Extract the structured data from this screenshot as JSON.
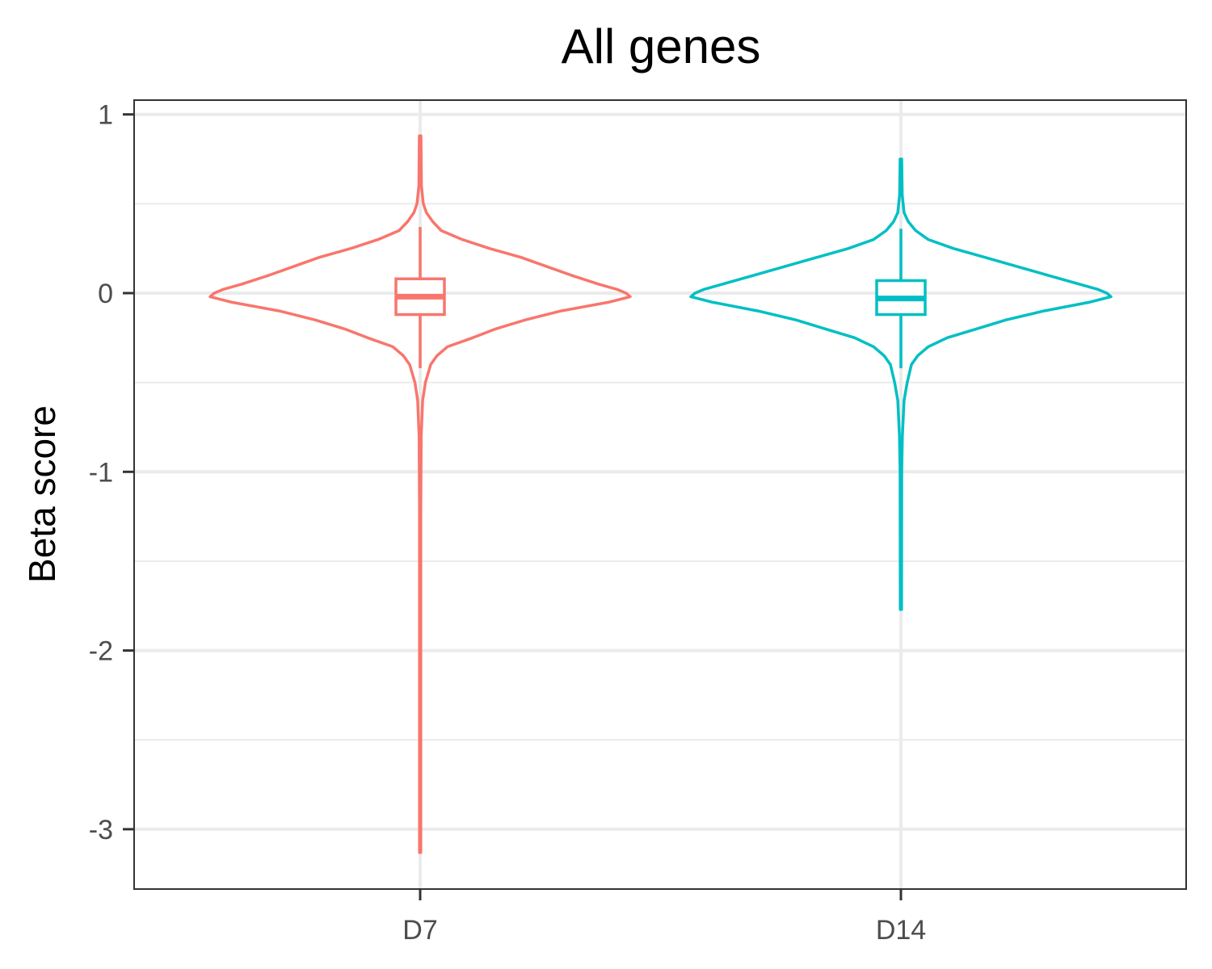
{
  "chart_data": {
    "type": "violin",
    "title": "All genes",
    "xlabel": "",
    "ylabel": "Beta score",
    "ylim": [
      -3.35,
      1.08
    ],
    "yticks": [
      1,
      0,
      -1,
      -2,
      -3
    ],
    "ytick_labels": [
      "1",
      "0",
      "-1",
      "-2",
      "-3"
    ],
    "categories": [
      "D7",
      "D14"
    ],
    "grid": true,
    "legend": "none",
    "series": [
      {
        "category": "D7",
        "color": "#F8766D",
        "min": -3.13,
        "max": 0.88,
        "box": {
          "q1": -0.12,
          "median": -0.02,
          "q3": 0.08,
          "whisker_low": -0.42,
          "whisker_high": 0.37
        },
        "density": [
          [
            0.88,
            0.004
          ],
          [
            0.6,
            0.006
          ],
          [
            0.5,
            0.015
          ],
          [
            0.45,
            0.03
          ],
          [
            0.4,
            0.06
          ],
          [
            0.35,
            0.1
          ],
          [
            0.3,
            0.2
          ],
          [
            0.25,
            0.33
          ],
          [
            0.2,
            0.48
          ],
          [
            0.15,
            0.6
          ],
          [
            0.1,
            0.72
          ],
          [
            0.05,
            0.85
          ],
          [
            0.02,
            0.94
          ],
          [
            0.0,
            0.98
          ],
          [
            -0.02,
            1.0
          ],
          [
            -0.05,
            0.9
          ],
          [
            -0.1,
            0.67
          ],
          [
            -0.15,
            0.5
          ],
          [
            -0.2,
            0.36
          ],
          [
            -0.25,
            0.25
          ],
          [
            -0.3,
            0.13
          ],
          [
            -0.35,
            0.08
          ],
          [
            -0.4,
            0.05
          ],
          [
            -0.5,
            0.025
          ],
          [
            -0.6,
            0.012
          ],
          [
            -0.8,
            0.005
          ],
          [
            -1.2,
            0.003
          ],
          [
            -3.13,
            0.003
          ]
        ]
      },
      {
        "category": "D14",
        "color": "#00BFC4",
        "min": -1.77,
        "max": 0.75,
        "box": {
          "q1": -0.12,
          "median": -0.03,
          "q3": 0.07,
          "whisker_low": -0.42,
          "whisker_high": 0.36
        },
        "density": [
          [
            0.75,
            0.004
          ],
          [
            0.55,
            0.006
          ],
          [
            0.45,
            0.015
          ],
          [
            0.4,
            0.035
          ],
          [
            0.35,
            0.07
          ],
          [
            0.3,
            0.13
          ],
          [
            0.25,
            0.25
          ],
          [
            0.2,
            0.4
          ],
          [
            0.15,
            0.55
          ],
          [
            0.1,
            0.7
          ],
          [
            0.05,
            0.85
          ],
          [
            0.02,
            0.94
          ],
          [
            0.0,
            0.98
          ],
          [
            -0.02,
            1.0
          ],
          [
            -0.05,
            0.9
          ],
          [
            -0.1,
            0.68
          ],
          [
            -0.15,
            0.5
          ],
          [
            -0.2,
            0.36
          ],
          [
            -0.25,
            0.22
          ],
          [
            -0.3,
            0.13
          ],
          [
            -0.35,
            0.08
          ],
          [
            -0.4,
            0.05
          ],
          [
            -0.5,
            0.03
          ],
          [
            -0.6,
            0.015
          ],
          [
            -0.8,
            0.007
          ],
          [
            -1.0,
            0.004
          ],
          [
            -1.77,
            0.003
          ]
        ]
      }
    ]
  }
}
